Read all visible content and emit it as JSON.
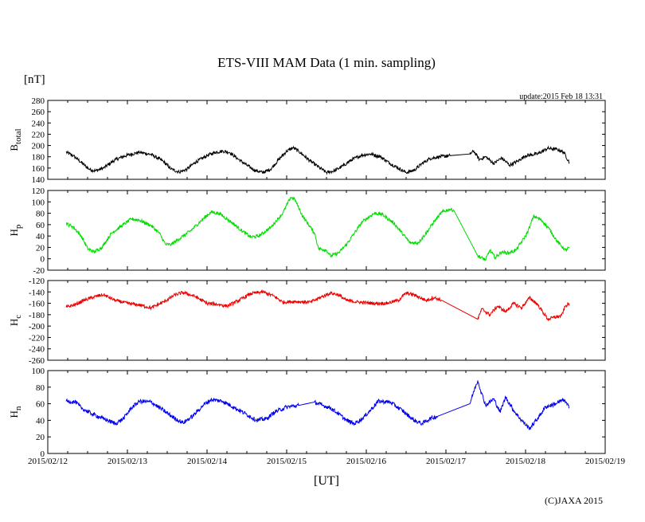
{
  "header": {
    "title": "ETS-VIII MAM Data (1 min. sampling)",
    "unit_label": "[nT]",
    "update": "update:2015 Feb 18 13:31"
  },
  "footer": {
    "xlabel": "[UT]",
    "copyright": "(C)JAXA 2015"
  },
  "colors": {
    "btotal": "#000000",
    "hp": "#00dd00",
    "hc": "#ee0000",
    "hn": "#0000ee",
    "axis": "#000000"
  },
  "chart_data": [
    {
      "type": "line",
      "name": "btotal",
      "ylabel_main": "B",
      "ylabel_sub": "total",
      "ylim": [
        140,
        280
      ],
      "yticks": [
        140,
        160,
        180,
        200,
        220,
        240,
        260,
        280
      ],
      "ytick_labels": [
        "140",
        "160",
        "180",
        "200",
        "220",
        "240",
        "260",
        "280"
      ],
      "xlim": [
        0,
        7
      ],
      "xticks": [
        0,
        1,
        2,
        3,
        4,
        5,
        6,
        7
      ],
      "xtick_labels": [
        "2015/02/12",
        "2015/02/13",
        "2015/02/14",
        "2015/02/15",
        "2015/02/16",
        "2015/02/17",
        "2015/02/18",
        "2015/02/19"
      ],
      "noise": 3,
      "points": [
        [
          0.23,
          188
        ],
        [
          0.32,
          182
        ],
        [
          0.42,
          170
        ],
        [
          0.52,
          158
        ],
        [
          0.6,
          155
        ],
        [
          0.7,
          160
        ],
        [
          0.85,
          175
        ],
        [
          1.0,
          183
        ],
        [
          1.15,
          188
        ],
        [
          1.3,
          184
        ],
        [
          1.45,
          172
        ],
        [
          1.55,
          158
        ],
        [
          1.65,
          153
        ],
        [
          1.75,
          158
        ],
        [
          1.85,
          170
        ],
        [
          2.0,
          182
        ],
        [
          2.1,
          188
        ],
        [
          2.2,
          190
        ],
        [
          2.28,
          188
        ],
        [
          2.4,
          175
        ],
        [
          2.5,
          165
        ],
        [
          2.6,
          156
        ],
        [
          2.7,
          152
        ],
        [
          2.8,
          158
        ],
        [
          2.9,
          175
        ],
        [
          3.0,
          190
        ],
        [
          3.08,
          196
        ],
        [
          3.15,
          190
        ],
        [
          3.3,
          172
        ],
        [
          3.42,
          160
        ],
        [
          3.5,
          152
        ],
        [
          3.6,
          155
        ],
        [
          3.72,
          165
        ],
        [
          3.82,
          175
        ],
        [
          3.95,
          183
        ],
        [
          4.05,
          185
        ],
        [
          4.18,
          180
        ],
        [
          4.3,
          168
        ],
        [
          4.4,
          160
        ],
        [
          4.5,
          152
        ],
        [
          4.6,
          156
        ],
        [
          4.7,
          168
        ],
        [
          4.8,
          177
        ],
        [
          4.92,
          180
        ],
        [
          5.05,
          182
        ],
        [
          5.3,
          185
        ],
        [
          5.35,
          190
        ],
        [
          5.42,
          175
        ],
        [
          5.5,
          180
        ],
        [
          5.6,
          168
        ],
        [
          5.7,
          178
        ],
        [
          5.8,
          165
        ],
        [
          5.9,
          172
        ],
        [
          6.0,
          182
        ],
        [
          6.15,
          185
        ],
        [
          6.28,
          195
        ],
        [
          6.4,
          193
        ],
        [
          6.48,
          188
        ],
        [
          6.55,
          170
        ]
      ]
    },
    {
      "type": "line",
      "name": "hp",
      "ylabel_main": "H",
      "ylabel_sub": "p",
      "ylim": [
        -20,
        120
      ],
      "yticks": [
        -20,
        0,
        20,
        40,
        60,
        80,
        100,
        120
      ],
      "ytick_labels": [
        "-20",
        "0",
        "20",
        "40",
        "60",
        "80",
        "100",
        "120"
      ],
      "xlim": [
        0,
        7
      ],
      "xticks": [
        0,
        1,
        2,
        3,
        4,
        5,
        6,
        7
      ],
      "xtick_labels": [
        "2015/02/12",
        "2015/02/13",
        "2015/02/14",
        "2015/02/15",
        "2015/02/16",
        "2015/02/17",
        "2015/02/18",
        "2015/02/19"
      ],
      "noise": 3,
      "points": [
        [
          0.23,
          62
        ],
        [
          0.32,
          56
        ],
        [
          0.42,
          40
        ],
        [
          0.5,
          18
        ],
        [
          0.58,
          12
        ],
        [
          0.68,
          20
        ],
        [
          0.8,
          45
        ],
        [
          0.95,
          60
        ],
        [
          1.05,
          70
        ],
        [
          1.15,
          68
        ],
        [
          1.3,
          58
        ],
        [
          1.4,
          45
        ],
        [
          1.48,
          25
        ],
        [
          1.55,
          25
        ],
        [
          1.65,
          35
        ],
        [
          1.8,
          50
        ],
        [
          1.95,
          70
        ],
        [
          2.05,
          82
        ],
        [
          2.15,
          80
        ],
        [
          2.3,
          65
        ],
        [
          2.45,
          48
        ],
        [
          2.55,
          38
        ],
        [
          2.65,
          40
        ],
        [
          2.8,
          55
        ],
        [
          2.95,
          80
        ],
        [
          3.05,
          108
        ],
        [
          3.1,
          105
        ],
        [
          3.2,
          75
        ],
        [
          3.35,
          45
        ],
        [
          3.4,
          18
        ],
        [
          3.5,
          15
        ],
        [
          3.55,
          5
        ],
        [
          3.65,
          10
        ],
        [
          3.75,
          25
        ],
        [
          3.85,
          45
        ],
        [
          3.95,
          65
        ],
        [
          4.1,
          80
        ],
        [
          4.2,
          78
        ],
        [
          4.35,
          62
        ],
        [
          4.45,
          45
        ],
        [
          4.55,
          28
        ],
        [
          4.65,
          28
        ],
        [
          4.75,
          45
        ],
        [
          4.85,
          65
        ],
        [
          4.95,
          82
        ],
        [
          5.05,
          87
        ],
        [
          5.1,
          85
        ],
        [
          5.4,
          5
        ],
        [
          5.5,
          -2
        ],
        [
          5.55,
          15
        ],
        [
          5.62,
          2
        ],
        [
          5.7,
          12
        ],
        [
          5.78,
          10
        ],
        [
          5.88,
          15
        ],
        [
          5.95,
          30
        ],
        [
          6.0,
          40
        ],
        [
          6.05,
          55
        ],
        [
          6.1,
          75
        ],
        [
          6.2,
          68
        ],
        [
          6.3,
          52
        ],
        [
          6.4,
          30
        ],
        [
          6.5,
          15
        ],
        [
          6.55,
          20
        ]
      ]
    },
    {
      "type": "line",
      "name": "hc",
      "ylabel_main": "H",
      "ylabel_sub": "c",
      "ylim": [
        -260,
        -120
      ],
      "yticks": [
        -260,
        -240,
        -220,
        -200,
        -180,
        -160,
        -140,
        -120
      ],
      "ytick_labels": [
        "-260",
        "-240",
        "-220",
        "-200",
        "-180",
        "-160",
        "-140",
        "-120"
      ],
      "xlim": [
        0,
        7
      ],
      "xticks": [
        0,
        1,
        2,
        3,
        4,
        5,
        6,
        7
      ],
      "xtick_labels": [
        "2015/02/12",
        "2015/02/13",
        "2015/02/14",
        "2015/02/15",
        "2015/02/16",
        "2015/02/17",
        "2015/02/18",
        "2015/02/19"
      ],
      "noise": 3,
      "points": [
        [
          0.23,
          -167
        ],
        [
          0.35,
          -162
        ],
        [
          0.45,
          -155
        ],
        [
          0.6,
          -148
        ],
        [
          0.7,
          -145
        ],
        [
          0.85,
          -155
        ],
        [
          1.0,
          -160
        ],
        [
          1.15,
          -163
        ],
        [
          1.3,
          -168
        ],
        [
          1.45,
          -158
        ],
        [
          1.6,
          -145
        ],
        [
          1.7,
          -141
        ],
        [
          1.85,
          -148
        ],
        [
          2.0,
          -160
        ],
        [
          2.15,
          -162
        ],
        [
          2.25,
          -165
        ],
        [
          2.4,
          -155
        ],
        [
          2.55,
          -143
        ],
        [
          2.7,
          -140
        ],
        [
          2.85,
          -148
        ],
        [
          2.95,
          -158
        ],
        [
          3.1,
          -157
        ],
        [
          3.3,
          -158
        ],
        [
          3.45,
          -148
        ],
        [
          3.55,
          -142
        ],
        [
          3.65,
          -145
        ],
        [
          3.75,
          -155
        ],
        [
          3.9,
          -158
        ],
        [
          4.1,
          -160
        ],
        [
          4.25,
          -160
        ],
        [
          4.4,
          -155
        ],
        [
          4.5,
          -142
        ],
        [
          4.6,
          -145
        ],
        [
          4.75,
          -155
        ],
        [
          4.85,
          -150
        ],
        [
          4.95,
          -155
        ],
        [
          5.4,
          -188
        ],
        [
          5.45,
          -170
        ],
        [
          5.55,
          -180
        ],
        [
          5.65,
          -165
        ],
        [
          5.75,
          -175
        ],
        [
          5.85,
          -160
        ],
        [
          5.95,
          -168
        ],
        [
          6.05,
          -150
        ],
        [
          6.15,
          -162
        ],
        [
          6.28,
          -188
        ],
        [
          6.35,
          -185
        ],
        [
          6.45,
          -182
        ],
        [
          6.5,
          -165
        ],
        [
          6.55,
          -160
        ]
      ]
    },
    {
      "type": "line",
      "name": "hn",
      "ylabel_main": "H",
      "ylabel_sub": "n",
      "ylim": [
        0,
        100
      ],
      "yticks": [
        0,
        20,
        40,
        60,
        80,
        100
      ],
      "ytick_labels": [
        "0",
        "20",
        "40",
        "60",
        "80",
        "100"
      ],
      "xlim": [
        0,
        7
      ],
      "xticks": [
        0,
        1,
        2,
        3,
        4,
        5,
        6,
        7
      ],
      "xtick_labels": [
        "2015/02/12",
        "2015/02/13",
        "2015/02/14",
        "2015/02/15",
        "2015/02/16",
        "2015/02/17",
        "2015/02/18",
        "2015/02/19"
      ],
      "noise": 2.5,
      "points": [
        [
          0.23,
          63
        ],
        [
          0.35,
          62
        ],
        [
          0.42,
          55
        ],
        [
          0.55,
          48
        ],
        [
          0.7,
          42
        ],
        [
          0.85,
          36
        ],
        [
          0.95,
          42
        ],
        [
          1.05,
          55
        ],
        [
          1.15,
          63
        ],
        [
          1.3,
          62
        ],
        [
          1.45,
          52
        ],
        [
          1.6,
          42
        ],
        [
          1.7,
          37
        ],
        [
          1.82,
          45
        ],
        [
          1.95,
          58
        ],
        [
          2.05,
          65
        ],
        [
          2.2,
          63
        ],
        [
          2.35,
          55
        ],
        [
          2.5,
          47
        ],
        [
          2.62,
          40
        ],
        [
          2.75,
          42
        ],
        [
          2.85,
          50
        ],
        [
          3.0,
          56
        ],
        [
          3.15,
          58
        ],
        [
          3.35,
          62
        ],
        [
          3.45,
          58
        ],
        [
          3.55,
          55
        ],
        [
          3.65,
          48
        ],
        [
          3.75,
          40
        ],
        [
          3.85,
          36
        ],
        [
          3.95,
          42
        ],
        [
          4.05,
          52
        ],
        [
          4.15,
          63
        ],
        [
          4.3,
          62
        ],
        [
          4.45,
          52
        ],
        [
          4.6,
          40
        ],
        [
          4.7,
          36
        ],
        [
          4.8,
          42
        ],
        [
          4.9,
          45
        ],
        [
          5.3,
          60
        ],
        [
          5.35,
          75
        ],
        [
          5.4,
          88
        ],
        [
          5.45,
          72
        ],
        [
          5.5,
          58
        ],
        [
          5.6,
          66
        ],
        [
          5.68,
          50
        ],
        [
          5.75,
          68
        ],
        [
          5.85,
          52
        ],
        [
          5.95,
          40
        ],
        [
          6.05,
          30
        ],
        [
          6.15,
          42
        ],
        [
          6.25,
          56
        ],
        [
          6.38,
          60
        ],
        [
          6.48,
          65
        ],
        [
          6.55,
          55
        ]
      ]
    }
  ]
}
